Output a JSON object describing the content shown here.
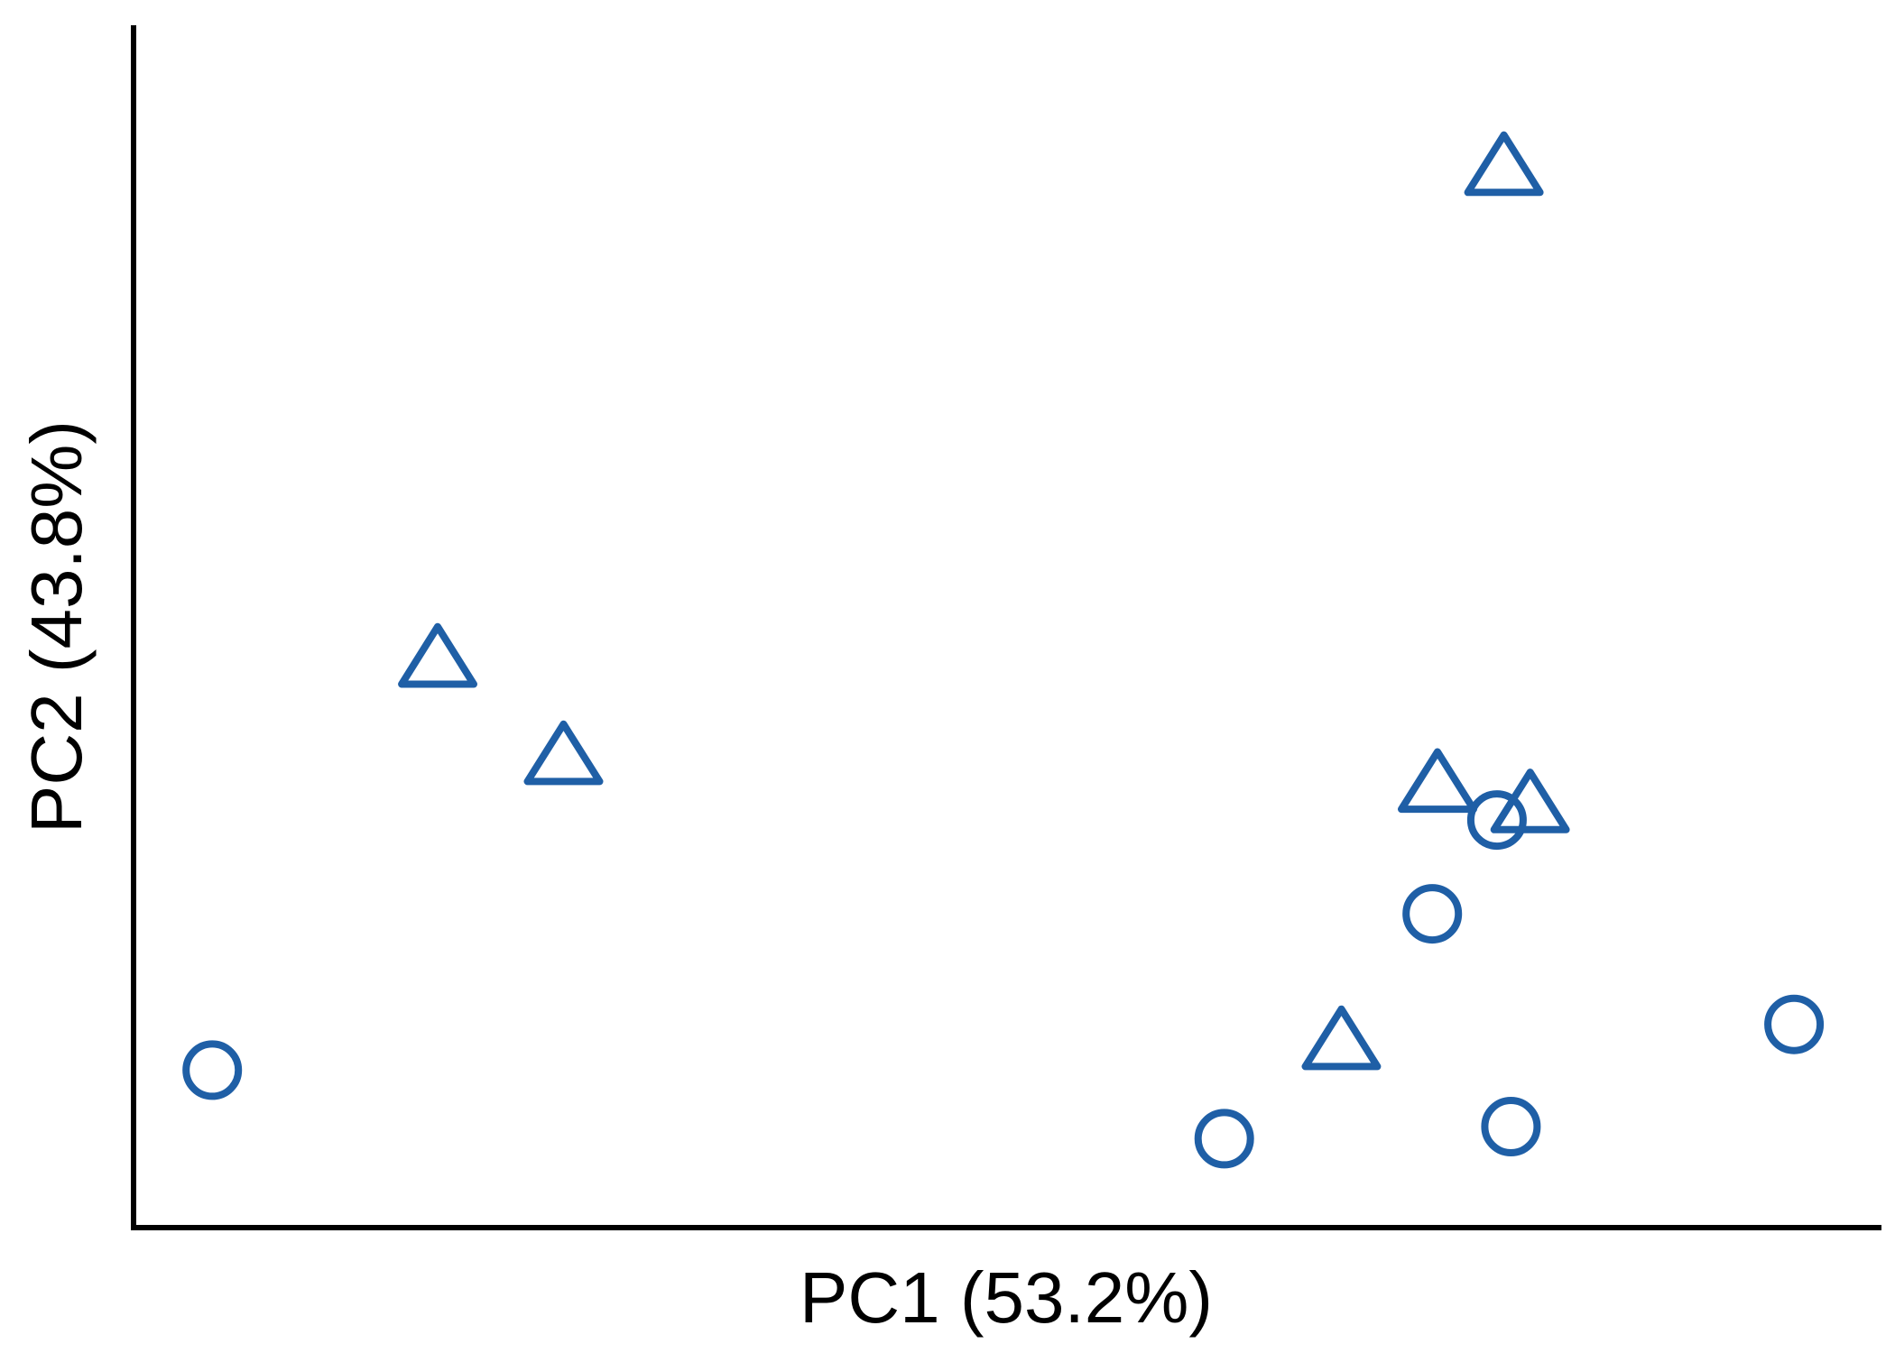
{
  "chart_data": {
    "type": "scatter",
    "xlabel": "PC1 (53.2%)",
    "ylabel": "PC2 (43.8%)",
    "xlim": [
      0,
      100
    ],
    "ylim": [
      0,
      100
    ],
    "grid": false,
    "color": "#1f5fa6",
    "series": [
      {
        "marker": "circle",
        "points": [
          {
            "x": 4.5,
            "y": 13.1
          },
          {
            "x": 62.4,
            "y": 7.4
          },
          {
            "x": 74.3,
            "y": 26.1
          },
          {
            "x": 78.0,
            "y": 33.9
          },
          {
            "x": 78.8,
            "y": 8.4
          },
          {
            "x": 95.0,
            "y": 16.9
          }
        ]
      },
      {
        "marker": "triangle",
        "points": [
          {
            "x": 17.4,
            "y": 47.2
          },
          {
            "x": 24.6,
            "y": 39.1
          },
          {
            "x": 69.1,
            "y": 15.4
          },
          {
            "x": 74.6,
            "y": 36.8
          },
          {
            "x": 78.4,
            "y": 88.1
          },
          {
            "x": 79.9,
            "y": 35.1
          }
        ]
      }
    ]
  }
}
